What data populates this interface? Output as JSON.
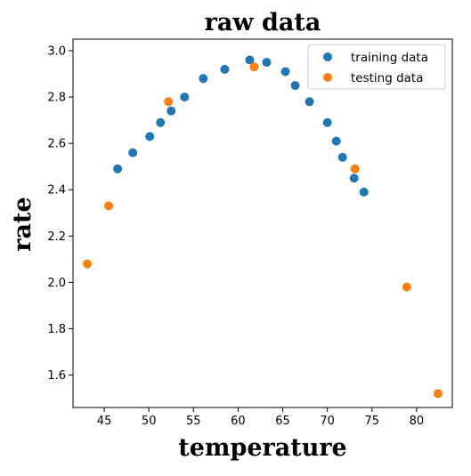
{
  "chart_data": {
    "type": "scatter",
    "title": "raw data",
    "xlabel": "temperature",
    "ylabel": "rate",
    "xlim": [
      41.5,
      84.0
    ],
    "ylim": [
      1.46,
      3.05
    ],
    "xticks": [
      45,
      50,
      55,
      60,
      65,
      70,
      75,
      80
    ],
    "yticks": [
      1.6,
      1.8,
      2.0,
      2.2,
      2.4,
      2.6,
      2.8,
      3.0
    ],
    "xtick_labels": [
      "45",
      "50",
      "55",
      "60",
      "65",
      "70",
      "75",
      "80"
    ],
    "ytick_labels": [
      "1.6",
      "1.8",
      "2.0",
      "2.2",
      "2.4",
      "2.6",
      "2.8",
      "3.0"
    ],
    "grid": false,
    "legend_position": "top-right",
    "series": [
      {
        "name": "training data",
        "color": "#1f77b4",
        "x": [
          46.5,
          48.2,
          50.1,
          51.3,
          52.5,
          54.0,
          56.1,
          58.5,
          61.3,
          63.2,
          65.3,
          66.4,
          68.0,
          70.0,
          71.0,
          71.7,
          73.0,
          74.1
        ],
        "y": [
          2.49,
          2.56,
          2.63,
          2.69,
          2.74,
          2.8,
          2.88,
          2.92,
          2.96,
          2.95,
          2.91,
          2.85,
          2.78,
          2.69,
          2.61,
          2.54,
          2.45,
          2.39
        ]
      },
      {
        "name": "testing data",
        "color": "#ff7f0e",
        "x": [
          43.1,
          45.5,
          52.2,
          61.8,
          73.1,
          78.9,
          82.4
        ],
        "y": [
          2.08,
          2.33,
          2.78,
          2.93,
          2.49,
          1.98,
          1.52
        ]
      }
    ]
  }
}
